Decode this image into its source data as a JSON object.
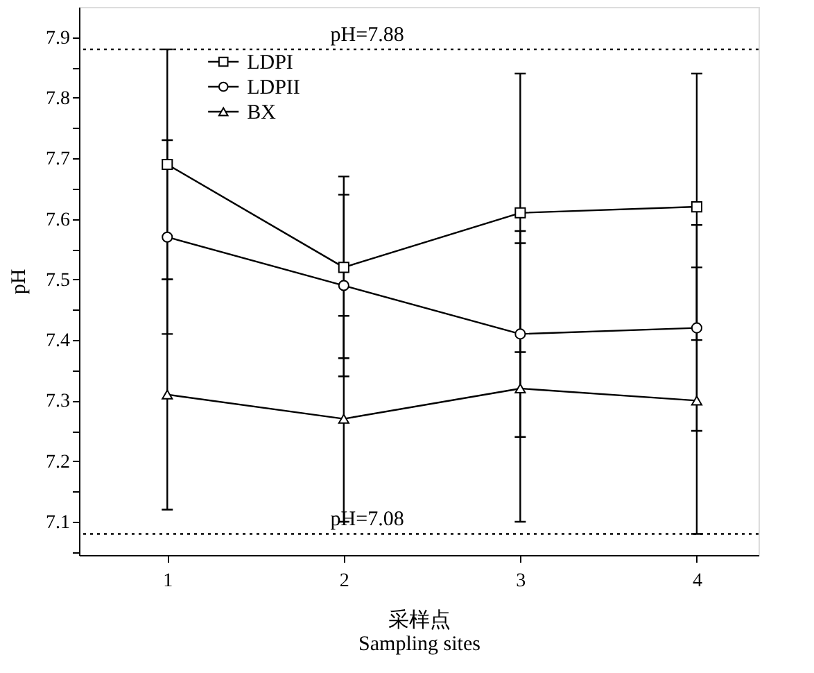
{
  "chart_data": {
    "type": "line",
    "xlabel": "采样点\nSampling sites",
    "ylabel": "pH",
    "x": [
      1,
      2,
      3,
      4
    ],
    "series": [
      {
        "name": "LDPI",
        "color": "#000000",
        "marker": "square",
        "values": [
          7.69,
          7.52,
          7.61,
          7.62
        ],
        "errors": [
          [
            7.5,
            7.88
          ],
          [
            7.37,
            7.67
          ],
          [
            7.38,
            7.84
          ],
          [
            7.4,
            7.84
          ]
        ]
      },
      {
        "name": "LDPII",
        "color": "#000000",
        "marker": "circle",
        "values": [
          7.57,
          7.49,
          7.41,
          7.42
        ],
        "errors": [
          [
            7.41,
            7.73
          ],
          [
            7.34,
            7.64
          ],
          [
            7.24,
            7.58
          ],
          [
            7.25,
            7.59
          ]
        ]
      },
      {
        "name": "BX",
        "color": "#000000",
        "marker": "triangle",
        "values": [
          7.31,
          7.27,
          7.32,
          7.3
        ],
        "errors": [
          [
            7.12,
            7.5
          ],
          [
            7.1,
            7.44
          ],
          [
            7.1,
            7.56
          ],
          [
            7.08,
            7.52
          ]
        ]
      }
    ],
    "xlim": [
      0.5,
      4.35
    ],
    "xticks": [
      1,
      2,
      3,
      4
    ],
    "ylim": [
      7.045,
      7.95
    ],
    "yticks": [
      {
        "value": 7.05,
        "label": null
      },
      7.1,
      {
        "value": 7.15,
        "label": null
      },
      7.2,
      {
        "value": 7.25,
        "label": null
      },
      7.3,
      {
        "value": 7.35,
        "label": null
      },
      7.4,
      {
        "value": 7.45,
        "label": null
      },
      7.5,
      {
        "value": 7.55,
        "label": null
      },
      7.6,
      {
        "value": 7.65,
        "label": null
      },
      7.7,
      {
        "value": 7.75,
        "label": null
      },
      7.8,
      {
        "value": 7.85,
        "label": null
      },
      7.9
    ],
    "ref_lines": [
      {
        "axis": "y",
        "value": 7.88,
        "label": "pH=7.88",
        "line_style": "dotted",
        "color": "#000000"
      },
      {
        "axis": "y",
        "value": 7.08,
        "label": "pH=7.08",
        "line_style": "dotted",
        "color": "#000000"
      }
    ],
    "legend": "top left",
    "grid": false,
    "line_style": "solid"
  }
}
